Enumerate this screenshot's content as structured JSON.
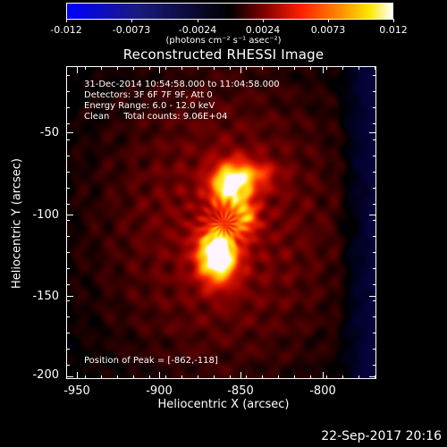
{
  "colorbar": {
    "tick_labels": [
      "-0.012",
      "-0.0073",
      "-0.0024",
      "0.0024",
      "0.0073",
      "0.012"
    ],
    "units": "(photons cm⁻² s⁻¹ asec⁻²)"
  },
  "title": "Reconstructed RHESSI Image",
  "annotations": {
    "time": "31-Dec-2014 10:54:58.000 to 11:04:58.000",
    "detectors": "Detectors: 3F 6F 7F 9F, Att 0",
    "energy": "Energy Range: 6.0 - 12.0 keV",
    "clean": "Clean     Total counts: 9.06E+04",
    "peak": "Position of Peak = [-862,-118]"
  },
  "axes": {
    "xlabel": "Heliocentric X (arcsec)",
    "ylabel": "Heliocentric Y (arcsec)",
    "xticks": [
      "-950",
      "-900",
      "-850",
      "-800"
    ],
    "yticks": [
      "-50",
      "-100",
      "-150",
      "-200"
    ]
  },
  "footer": "22-Sep-2017 20:16"
}
